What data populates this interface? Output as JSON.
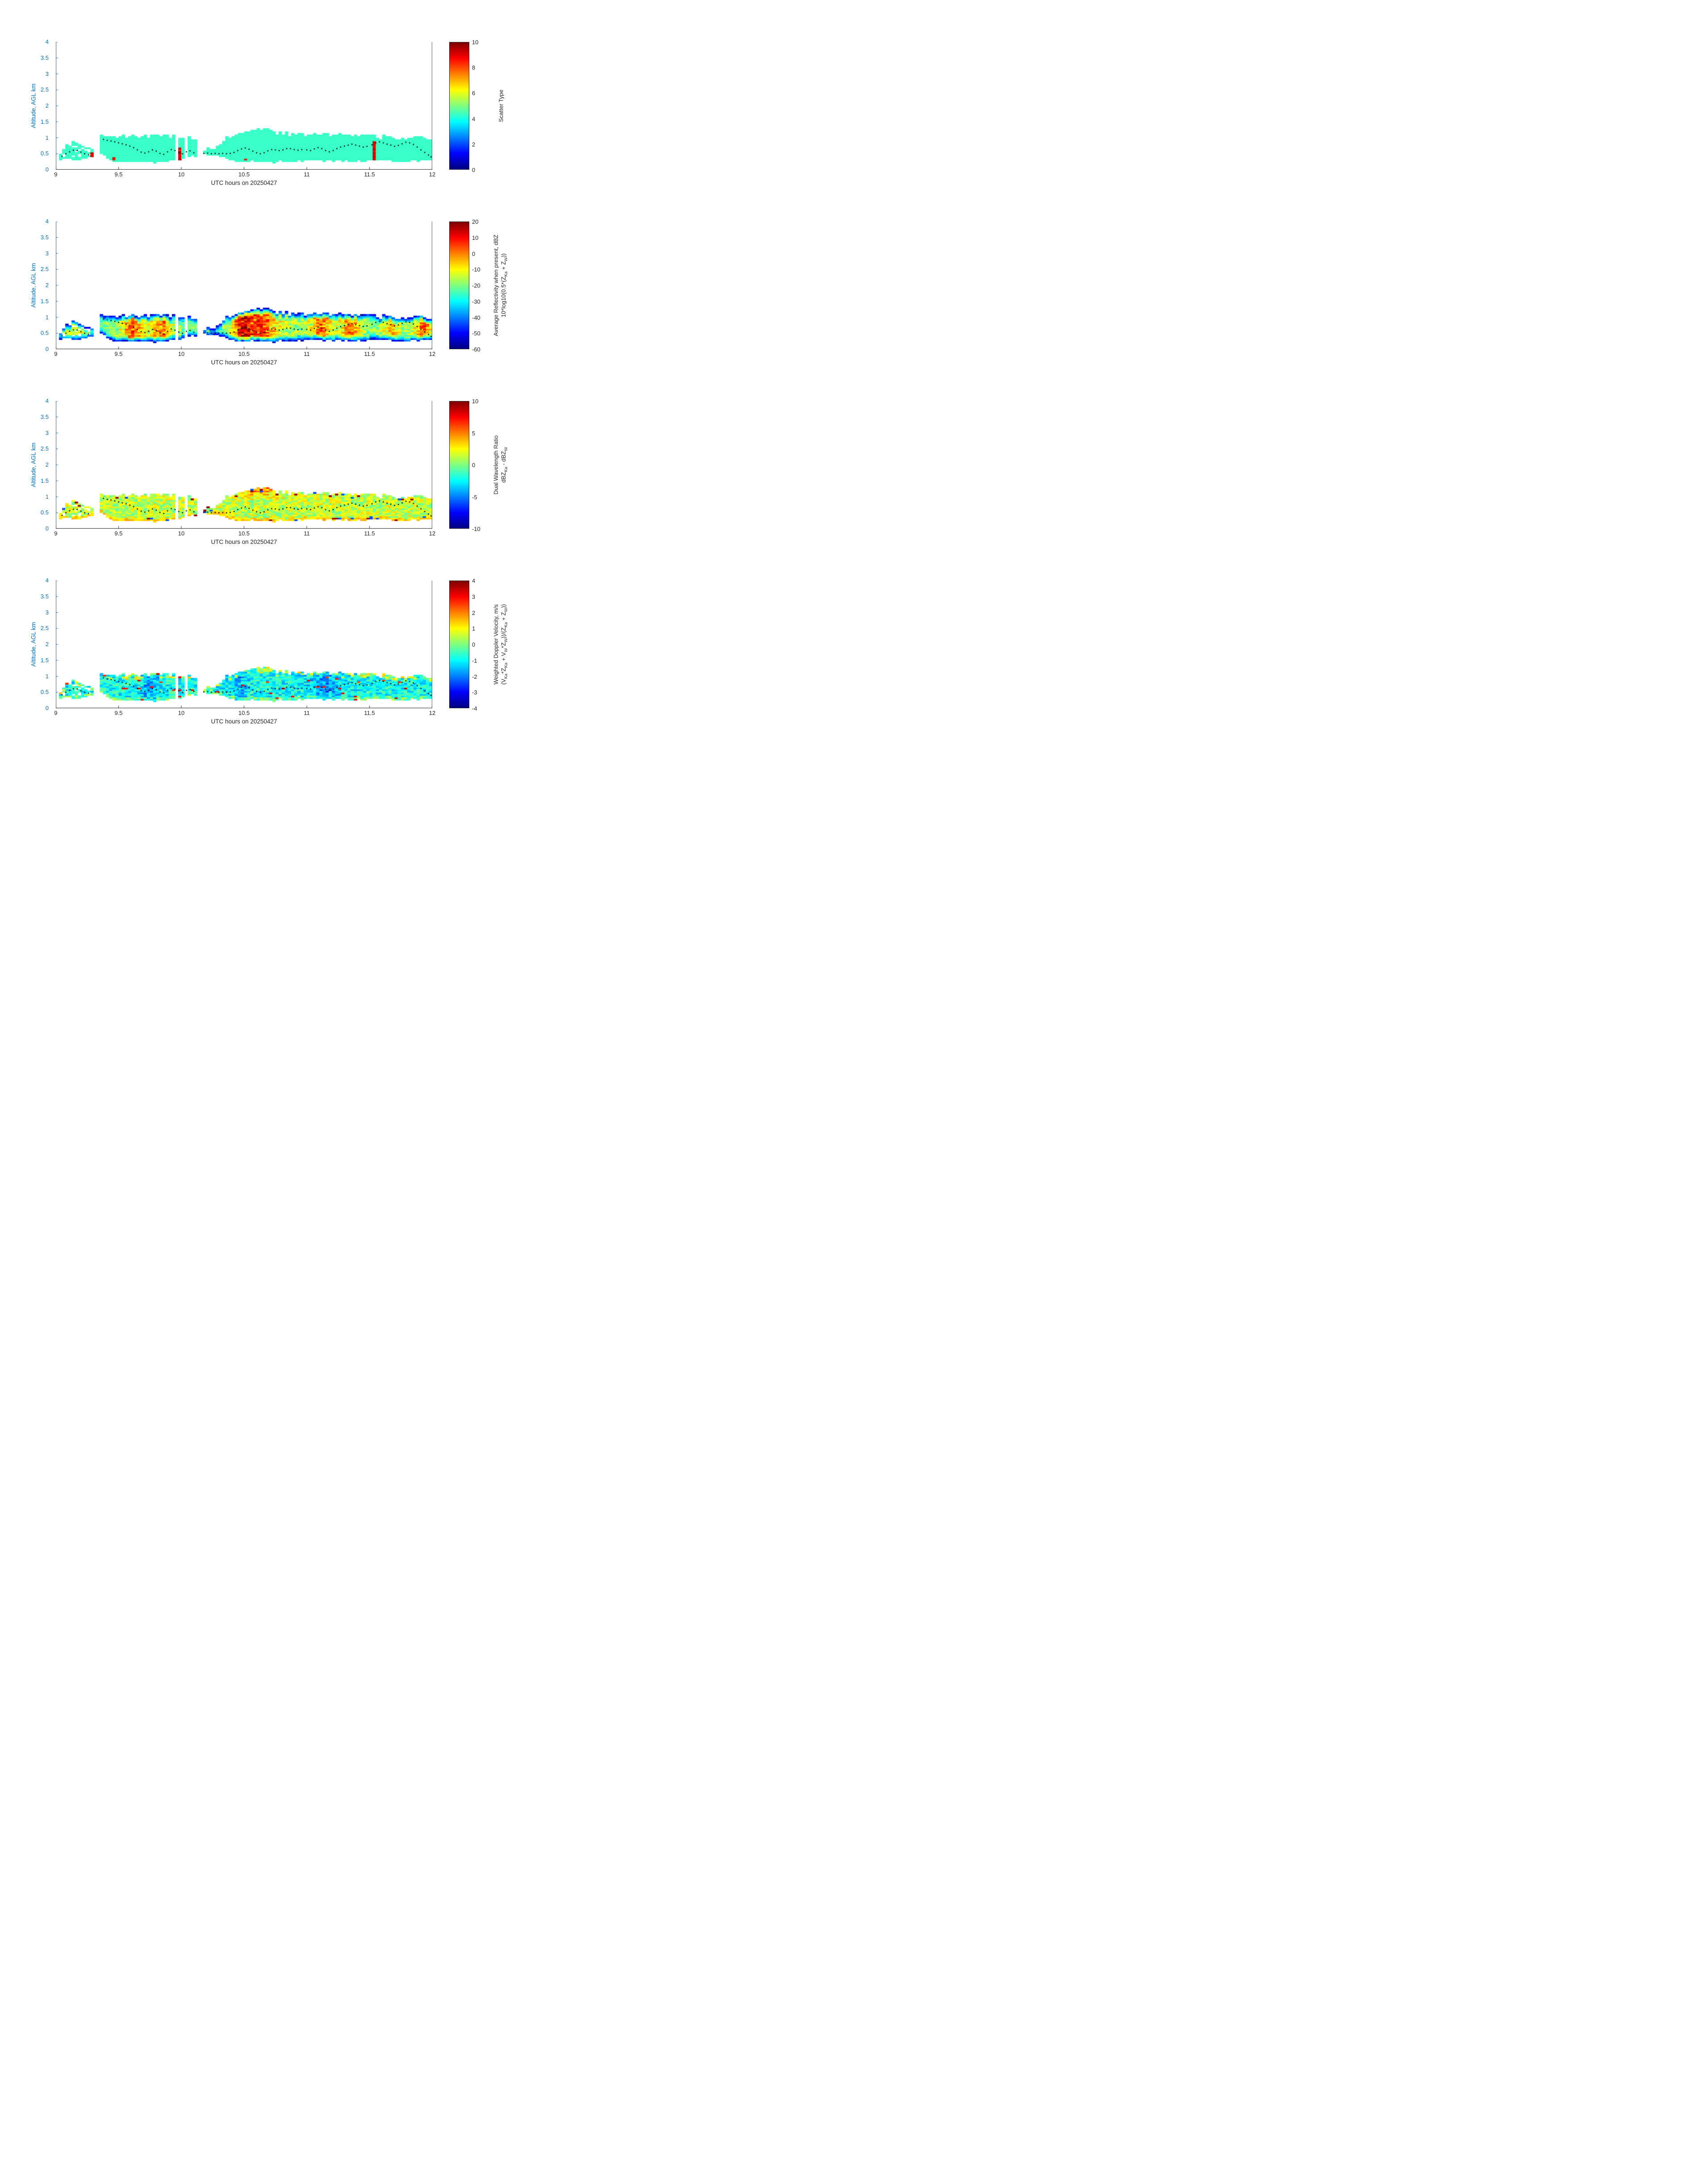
{
  "styles": {
    "background": "#ffffff",
    "axis_y_color": "#0072BD",
    "axis_x_color": "#262626",
    "dot_color": "#000000"
  },
  "chart_data": {
    "type": "heatmap",
    "description": "Four stacked time-height radar panels for 20250427, 09:00-12:00 UTC, cloud layer between about 0.25 and 1.3 km AGL with black cloud-feature track dots",
    "shared_x": {
      "label": "UTC hours on 20250427",
      "range": [
        9,
        12
      ],
      "ticks": [
        "9",
        "9.5",
        "10",
        "10.5",
        "11",
        "11.5",
        "12"
      ],
      "tick_values": [
        9,
        9.5,
        10,
        10.5,
        11,
        11.5,
        12
      ]
    },
    "shared_y": {
      "label": "Altitude, AGL km",
      "range": [
        0,
        4
      ],
      "ticks": [
        "0",
        "0.5",
        "1",
        "1.5",
        "2",
        "2.5",
        "3",
        "3.5",
        "4"
      ],
      "tick_values": [
        0,
        0.5,
        1,
        1.5,
        2,
        2.5,
        3,
        3.5,
        4
      ]
    },
    "colormap_stops": [
      [
        0,
        "#000080"
      ],
      [
        0.125,
        "#0000ff"
      ],
      [
        0.375,
        "#00ffff"
      ],
      [
        0.625,
        "#ffff00"
      ],
      [
        0.875,
        "#ff0000"
      ],
      [
        1,
        "#800000"
      ]
    ],
    "panels": [
      {
        "id": "scatter_type",
        "value_range": [
          0,
          10
        ],
        "colorbar_ticks": [
          0,
          2,
          4,
          6,
          8,
          10
        ],
        "label_lines": [
          [
            {
              "t": "Scatter Type"
            }
          ]
        ],
        "model": {
          "type": "constant",
          "value": 4.3,
          "special_value": 8.4
        }
      },
      {
        "id": "reflectivity",
        "value_range": [
          -60,
          20
        ],
        "colorbar_ticks": [
          -60,
          -50,
          -40,
          -30,
          -20,
          -10,
          0,
          10,
          20
        ],
        "label_lines": [
          [
            {
              "t": "Average Reflectivity when present, dBZ"
            }
          ],
          [
            {
              "t": "10*log10(0.5*(Z"
            },
            {
              "t": "Ka",
              "sub": true
            },
            {
              "t": " + Z"
            },
            {
              "t": "W",
              "sub": true
            },
            {
              "t": "))"
            }
          ]
        ],
        "model": {
          "type": "reflectivity",
          "edge_val": -57,
          "core_base": -30,
          "core_gain": 45,
          "noise": 14,
          "edge_scale": 0.2,
          "base_intensity": 0.3,
          "hot_columns": [
            [
              9.15,
              0.05,
              0.2
            ],
            [
              9.62,
              0.06,
              0.5
            ],
            [
              9.84,
              0.05,
              0.45
            ],
            [
              10.48,
              0.05,
              0.5
            ],
            [
              10.62,
              0.1,
              0.55
            ],
            [
              11.12,
              0.06,
              0.45
            ],
            [
              11.35,
              0.05,
              0.42
            ],
            [
              11.68,
              0.05,
              0.3
            ],
            [
              11.93,
              0.05,
              0.45
            ]
          ]
        }
      },
      {
        "id": "dual_wavelength_ratio",
        "value_range": [
          -10,
          10
        ],
        "colorbar_ticks": [
          -10,
          -5,
          0,
          5,
          10
        ],
        "label_lines": [
          [
            {
              "t": "Dual Wavelength Ratio"
            }
          ],
          [
            {
              "t": "dBZ"
            },
            {
              "t": "Ka",
              "sub": true
            },
            {
              "t": " - dBZ"
            },
            {
              "t": "W",
              "sub": true
            }
          ]
        ],
        "model": {
          "type": "dwr",
          "base": 1.3,
          "noise": 4.2,
          "top_bump": [
            10.62,
            0.1,
            4.5
          ],
          "base_row_val": 3.4,
          "speck_hi": 9.5,
          "speck_lo": -6
        }
      },
      {
        "id": "weighted_doppler_velocity",
        "value_range": [
          -4,
          4
        ],
        "colorbar_ticks": [
          -4,
          -3,
          -2,
          -1,
          0,
          1,
          2,
          3,
          4
        ],
        "label_lines": [
          [
            {
              "t": "Weighted Doppler Velocity, m/s"
            }
          ],
          [
            {
              "t": "(V"
            },
            {
              "t": "Ka",
              "sub": true
            },
            {
              "t": "*Z"
            },
            {
              "t": "Ka",
              "sub": true
            },
            {
              "t": " + V"
            },
            {
              "t": "W",
              "sub": true
            },
            {
              "t": "*Z"
            },
            {
              "t": "W",
              "sub": true
            },
            {
              "t": "))/(Z"
            },
            {
              "t": "Ka",
              "sub": true
            },
            {
              "t": " + Z"
            },
            {
              "t": "W",
              "sub": true
            },
            {
              "t": "))"
            }
          ]
        ],
        "model": {
          "type": "doppler",
          "base": -0.9,
          "noise": 1.6,
          "top_boost": 1.6,
          "base_boost": 0.7,
          "speck": 2.4,
          "cool_columns": [
            [
              9.75,
              0.05,
              1.0
            ],
            [
              10.32,
              0.04,
              0.5
            ],
            [
              10.47,
              0.04,
              0.9
            ],
            [
              11.15,
              0.09,
              1.1
            ]
          ]
        }
      }
    ],
    "cloud_segments": [
      {
        "patchy": true,
        "p": [
          [
            9.02,
            0.35,
            0.5
          ],
          [
            9.05,
            0.3,
            0.62
          ],
          [
            9.08,
            0.3,
            0.72
          ],
          [
            9.12,
            0.3,
            0.85
          ],
          [
            9.16,
            0.3,
            0.88
          ],
          [
            9.2,
            0.32,
            0.8
          ],
          [
            9.24,
            0.35,
            0.72
          ],
          [
            9.31,
            0.4,
            0.6
          ]
        ]
      },
      {
        "patchy": false,
        "p": [
          [
            9.34,
            0.55,
            1.0
          ],
          [
            9.38,
            0.45,
            1.08
          ],
          [
            9.42,
            0.3,
            1.05
          ],
          [
            9.5,
            0.25,
            1.05
          ],
          [
            9.6,
            0.25,
            1.08
          ],
          [
            9.7,
            0.25,
            1.05
          ],
          [
            9.8,
            0.25,
            1.08
          ],
          [
            9.9,
            0.25,
            1.05
          ],
          [
            9.96,
            0.3,
            1.02
          ]
        ]
      },
      {
        "patchy": false,
        "p": [
          [
            9.97,
            0.3,
            1.0
          ],
          [
            10.02,
            0.35,
            1.0
          ]
        ]
      },
      {
        "patchy": false,
        "p": [
          [
            10.04,
            0.45,
            1.02
          ],
          [
            10.08,
            0.4,
            1.05
          ],
          [
            10.12,
            0.42,
            0.95
          ],
          [
            10.13,
            0.45,
            0.7
          ]
        ]
      },
      {
        "patchy": false,
        "p": [
          [
            10.17,
            0.45,
            0.62
          ],
          [
            10.22,
            0.44,
            0.66
          ],
          [
            10.28,
            0.44,
            0.72
          ],
          [
            10.34,
            0.42,
            0.95
          ],
          [
            10.38,
            0.3,
            1.05
          ],
          [
            10.45,
            0.27,
            1.12
          ],
          [
            10.52,
            0.25,
            1.18
          ],
          [
            10.58,
            0.25,
            1.22
          ],
          [
            10.64,
            0.25,
            1.28
          ],
          [
            10.7,
            0.25,
            1.22
          ],
          [
            10.78,
            0.25,
            1.15
          ],
          [
            10.9,
            0.25,
            1.12
          ],
          [
            11.0,
            0.3,
            1.1
          ],
          [
            11.1,
            0.3,
            1.12
          ],
          [
            11.2,
            0.28,
            1.12
          ],
          [
            11.3,
            0.25,
            1.1
          ],
          [
            11.4,
            0.25,
            1.08
          ],
          [
            11.5,
            0.3,
            1.05
          ],
          [
            11.58,
            0.3,
            1.0
          ],
          [
            11.64,
            0.28,
            1.05
          ],
          [
            11.72,
            0.25,
            0.95
          ],
          [
            11.8,
            0.25,
            1.0
          ],
          [
            11.88,
            0.28,
            1.02
          ],
          [
            11.95,
            0.3,
            1.0
          ],
          [
            12.0,
            0.3,
            0.98
          ]
        ]
      }
    ],
    "panel1_special_cells": [
      {
        "t0": 9.275,
        "t1": 9.31,
        "a0": 0.42,
        "a1": 0.55
      },
      {
        "t0": 9.455,
        "t1": 9.48,
        "a0": 0.28,
        "a1": 0.42
      },
      {
        "t0": 9.985,
        "t1": 10.01,
        "a0": 0.3,
        "a1": 0.68
      },
      {
        "t0": 10.51,
        "t1": 10.53,
        "a0": 0.28,
        "a1": 0.35
      },
      {
        "t0": 11.53,
        "t1": 11.56,
        "a0": 0.3,
        "a1": 0.9
      }
    ],
    "track_points": [
      [
        9.05,
        0.42
      ],
      [
        9.08,
        0.5
      ],
      [
        9.11,
        0.56
      ],
      [
        9.14,
        0.61
      ],
      [
        9.17,
        0.6
      ],
      [
        9.2,
        0.55
      ],
      [
        9.23,
        0.5
      ],
      [
        9.26,
        0.47
      ],
      [
        9.38,
        0.95
      ],
      [
        9.41,
        0.92
      ],
      [
        9.44,
        0.9
      ],
      [
        9.47,
        0.87
      ],
      [
        9.5,
        0.84
      ],
      [
        9.53,
        0.81
      ],
      [
        9.56,
        0.78
      ],
      [
        9.59,
        0.74
      ],
      [
        9.62,
        0.69
      ],
      [
        9.65,
        0.62
      ],
      [
        9.68,
        0.55
      ],
      [
        9.71,
        0.52
      ],
      [
        9.74,
        0.56
      ],
      [
        9.77,
        0.62
      ],
      [
        9.8,
        0.58
      ],
      [
        9.83,
        0.51
      ],
      [
        9.86,
        0.48
      ],
      [
        9.89,
        0.56
      ],
      [
        9.92,
        0.63
      ],
      [
        9.95,
        0.6
      ],
      [
        9.98,
        0.54
      ],
      [
        10.01,
        0.5
      ],
      [
        10.04,
        0.56
      ],
      [
        10.07,
        0.59
      ],
      [
        10.1,
        0.53
      ],
      [
        10.18,
        0.51
      ],
      [
        10.21,
        0.52
      ],
      [
        10.24,
        0.5
      ],
      [
        10.27,
        0.51
      ],
      [
        10.3,
        0.5
      ],
      [
        10.33,
        0.51
      ],
      [
        10.36,
        0.5
      ],
      [
        10.39,
        0.51
      ],
      [
        10.42,
        0.54
      ],
      [
        10.45,
        0.6
      ],
      [
        10.48,
        0.65
      ],
      [
        10.51,
        0.68
      ],
      [
        10.54,
        0.64
      ],
      [
        10.57,
        0.58
      ],
      [
        10.6,
        0.53
      ],
      [
        10.63,
        0.5
      ],
      [
        10.66,
        0.53
      ],
      [
        10.69,
        0.59
      ],
      [
        10.72,
        0.63
      ],
      [
        10.75,
        0.62
      ],
      [
        10.78,
        0.6
      ],
      [
        10.81,
        0.62
      ],
      [
        10.84,
        0.66
      ],
      [
        10.87,
        0.66
      ],
      [
        10.9,
        0.63
      ],
      [
        10.93,
        0.61
      ],
      [
        10.96,
        0.63
      ],
      [
        11.0,
        0.62
      ],
      [
        11.03,
        0.6
      ],
      [
        11.06,
        0.65
      ],
      [
        11.09,
        0.69
      ],
      [
        11.12,
        0.66
      ],
      [
        11.15,
        0.6
      ],
      [
        11.18,
        0.56
      ],
      [
        11.21,
        0.6
      ],
      [
        11.24,
        0.66
      ],
      [
        11.27,
        0.71
      ],
      [
        11.3,
        0.74
      ],
      [
        11.33,
        0.77
      ],
      [
        11.36,
        0.8
      ],
      [
        11.39,
        0.77
      ],
      [
        11.42,
        0.74
      ],
      [
        11.45,
        0.71
      ],
      [
        11.48,
        0.73
      ],
      [
        11.52,
        0.78
      ],
      [
        11.55,
        0.84
      ],
      [
        11.58,
        0.87
      ],
      [
        11.61,
        0.84
      ],
      [
        11.64,
        0.8
      ],
      [
        11.67,
        0.77
      ],
      [
        11.7,
        0.73
      ],
      [
        11.73,
        0.76
      ],
      [
        11.76,
        0.81
      ],
      [
        11.79,
        0.86
      ],
      [
        11.82,
        0.84
      ],
      [
        11.85,
        0.79
      ],
      [
        11.88,
        0.71
      ],
      [
        11.91,
        0.62
      ],
      [
        11.94,
        0.54
      ],
      [
        11.97,
        0.46
      ],
      [
        11.99,
        0.4
      ]
    ]
  }
}
